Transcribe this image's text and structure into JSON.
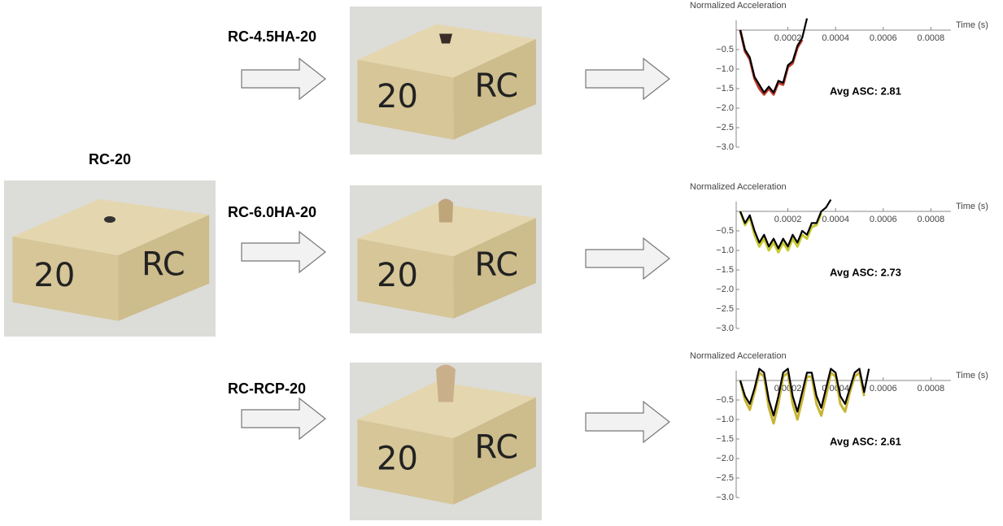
{
  "source_label": "RC-20",
  "variant_labels": [
    "RC-4.5HA-20",
    "RC-6.0HA-20",
    "RC-RCP-20"
  ],
  "photos": [
    {
      "front": "20",
      "side": "RC"
    },
    {
      "front": "20",
      "side": "RC"
    },
    {
      "front": "20",
      "side": "RC"
    },
    {
      "front": "20",
      "side": "RC"
    }
  ],
  "chart_data": [
    {
      "type": "line",
      "y_label": "Normalized Acceleration",
      "x_label": "Time (s)",
      "annotation": "Avg ASC: 2.81",
      "x": [
        0,
        2e-05,
        4e-05,
        6e-05,
        8e-05,
        0.0001,
        0.00012,
        0.00014,
        0.00016,
        0.00018,
        0.0002,
        0.00022,
        0.00024,
        0.00026,
        0.00028
      ],
      "series": [
        {
          "color": "#c0392b",
          "values": [
            0,
            -0.55,
            -0.75,
            -1.25,
            -1.5,
            -1.65,
            -1.5,
            -1.65,
            -1.35,
            -1.4,
            -0.95,
            -0.85,
            -0.45,
            -0.25,
            null
          ]
        },
        {
          "color": "#000000",
          "values": [
            0,
            -0.5,
            -0.7,
            -1.2,
            -1.4,
            -1.6,
            -1.45,
            -1.6,
            -1.3,
            -1.35,
            -0.9,
            -0.8,
            -0.4,
            -0.2,
            0.3
          ]
        }
      ],
      "xlim": [
        0,
        0.00085
      ],
      "ylim": [
        -3,
        0.25
      ],
      "xticks": [
        0.0002,
        0.0004,
        0.0006,
        0.0008
      ],
      "yticks": [
        {
          "value": -0.5,
          "label": "−0.5"
        },
        {
          "value": -1,
          "label": "−1.0"
        },
        {
          "value": -1.5,
          "label": "−1.5"
        },
        {
          "value": -2,
          "label": "−2.0"
        },
        {
          "value": -2.5,
          "label": "−2.5"
        },
        {
          "value": -3,
          "label": "−3.0"
        }
      ]
    },
    {
      "type": "line",
      "y_label": "Normalized Acceleration",
      "x_label": "Time (s)",
      "annotation": "Avg ASC: 2.73",
      "x": [
        0,
        2e-05,
        4e-05,
        6e-05,
        8e-05,
        0.0001,
        0.00012,
        0.00014,
        0.00016,
        0.00018,
        0.0002,
        0.00022,
        0.00024,
        0.00026,
        0.00028,
        0.0003,
        0.00032,
        0.00034,
        0.00036,
        0.00038
      ],
      "series": [
        {
          "color": "#c8c832",
          "values": [
            0,
            -0.35,
            -0.15,
            -0.6,
            -0.9,
            -0.7,
            -1.0,
            -0.8,
            -1.05,
            -0.8,
            -1.0,
            -0.7,
            -0.9,
            -0.6,
            -0.7,
            -0.4,
            -0.35,
            -0.05,
            null,
            null
          ]
        },
        {
          "color": "#000000",
          "values": [
            0,
            -0.3,
            -0.1,
            -0.5,
            -0.8,
            -0.6,
            -0.9,
            -0.7,
            -0.95,
            -0.7,
            -0.9,
            -0.6,
            -0.8,
            -0.5,
            -0.6,
            -0.3,
            -0.3,
            0,
            0.1,
            0.3
          ]
        }
      ],
      "xlim": [
        0,
        0.00085
      ],
      "ylim": [
        -3,
        0.25
      ],
      "xticks": [
        0.0002,
        0.0004,
        0.0006,
        0.0008
      ],
      "yticks": [
        {
          "value": -0.5,
          "label": "−0.5"
        },
        {
          "value": -1,
          "label": "−1.0"
        },
        {
          "value": -1.5,
          "label": "−1.5"
        },
        {
          "value": -2,
          "label": "−2.0"
        },
        {
          "value": -2.5,
          "label": "−2.5"
        },
        {
          "value": -3,
          "label": "−3.0"
        }
      ]
    },
    {
      "type": "line",
      "y_label": "Normalized Acceleration",
      "x_label": "Time (s)",
      "annotation": "Avg ASC: 2.61",
      "x": [
        0,
        2e-05,
        4e-05,
        6e-05,
        8e-05,
        0.0001,
        0.00012,
        0.00014,
        0.00016,
        0.00018,
        0.0002,
        0.00022,
        0.00024,
        0.00026,
        0.00028,
        0.0003,
        0.00032,
        0.00034,
        0.00036,
        0.00038,
        0.0004,
        0.00042,
        0.00044,
        0.00046,
        0.00048,
        0.0005,
        0.00052,
        0.00054
      ],
      "series": [
        {
          "color": "#c8b432",
          "values": [
            0,
            -0.5,
            -0.75,
            -0.3,
            0.2,
            0.1,
            -0.7,
            -1.1,
            -0.6,
            0.1,
            0.2,
            -0.6,
            -1.0,
            -0.5,
            0.1,
            0.1,
            -0.6,
            -0.9,
            -0.4,
            0.2,
            0.1,
            -0.6,
            -0.8,
            -0.3,
            0.1,
            0.2,
            -0.4,
            null
          ]
        },
        {
          "color": "#000000",
          "values": [
            0,
            -0.4,
            -0.6,
            -0.2,
            0.3,
            0.2,
            -0.5,
            -0.9,
            -0.4,
            0.2,
            0.3,
            -0.4,
            -0.8,
            -0.3,
            0.2,
            0.2,
            -0.4,
            -0.7,
            -0.2,
            0.3,
            0.2,
            -0.4,
            -0.6,
            -0.2,
            0.2,
            0.3,
            -0.3,
            0.3
          ]
        }
      ],
      "xlim": [
        0,
        0.00085
      ],
      "ylim": [
        -3,
        0.25
      ],
      "xticks": [
        0.0002,
        0.0004,
        0.0006,
        0.0008
      ],
      "yticks": [
        {
          "value": -0.5,
          "label": "−0.5"
        },
        {
          "value": -1,
          "label": "−1.0"
        },
        {
          "value": -1.5,
          "label": "−1.5"
        },
        {
          "value": -2,
          "label": "−2.0"
        },
        {
          "value": -2.5,
          "label": "−2.5"
        },
        {
          "value": -3,
          "label": "−3.0"
        }
      ]
    }
  ]
}
